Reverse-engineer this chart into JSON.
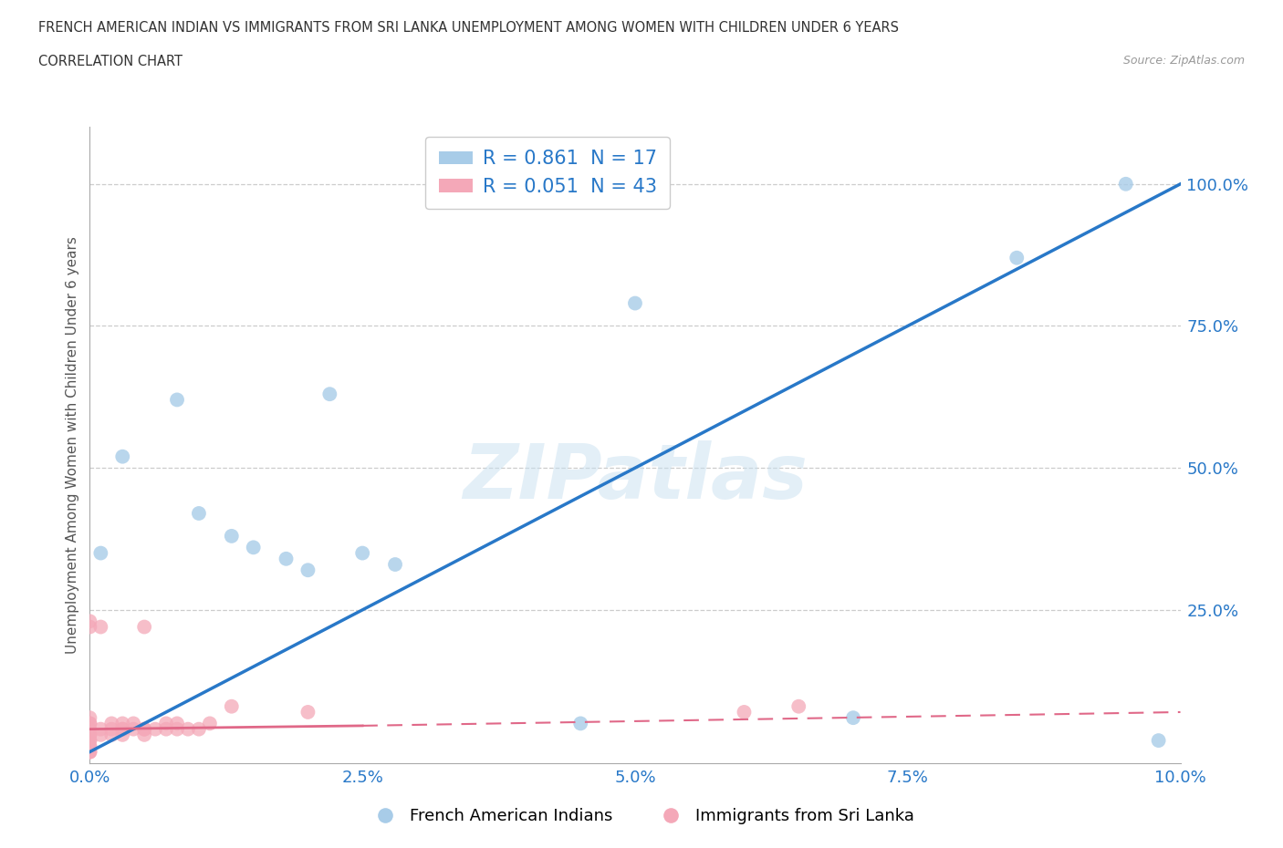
{
  "title_line1": "FRENCH AMERICAN INDIAN VS IMMIGRANTS FROM SRI LANKA UNEMPLOYMENT AMONG WOMEN WITH CHILDREN UNDER 6 YEARS",
  "title_line2": "CORRELATION CHART",
  "source": "Source: ZipAtlas.com",
  "ylabel": "Unemployment Among Women with Children Under 6 years",
  "xlim": [
    0.0,
    0.1
  ],
  "ylim": [
    -0.02,
    1.1
  ],
  "xtick_labels": [
    "0.0%",
    "2.5%",
    "5.0%",
    "7.5%",
    "10.0%"
  ],
  "xtick_vals": [
    0.0,
    0.025,
    0.05,
    0.075,
    0.1
  ],
  "ytick_labels": [
    "25.0%",
    "50.0%",
    "75.0%",
    "100.0%"
  ],
  "ytick_vals": [
    0.25,
    0.5,
    0.75,
    1.0
  ],
  "blue_R": 0.861,
  "blue_N": 17,
  "pink_R": 0.051,
  "pink_N": 43,
  "blue_color": "#a8cce8",
  "pink_color": "#f4a8b8",
  "blue_line_color": "#2878c8",
  "pink_line_color": "#e06888",
  "watermark_text": "ZIPatlas",
  "blue_scatter_x": [
    0.001,
    0.003,
    0.008,
    0.01,
    0.013,
    0.015,
    0.018,
    0.02,
    0.022,
    0.025,
    0.028,
    0.045,
    0.05,
    0.07,
    0.085,
    0.095,
    0.098
  ],
  "blue_scatter_y": [
    0.35,
    0.52,
    0.62,
    0.42,
    0.38,
    0.36,
    0.34,
    0.32,
    0.63,
    0.35,
    0.33,
    0.05,
    0.79,
    0.06,
    0.87,
    1.0,
    0.02
  ],
  "pink_scatter_x": [
    0.0,
    0.0,
    0.0,
    0.0,
    0.0,
    0.0,
    0.0,
    0.0,
    0.0,
    0.0,
    0.0,
    0.0,
    0.0,
    0.0,
    0.0,
    0.001,
    0.001,
    0.001,
    0.002,
    0.002,
    0.002,
    0.003,
    0.003,
    0.003,
    0.003,
    0.004,
    0.004,
    0.005,
    0.005,
    0.005,
    0.005,
    0.006,
    0.007,
    0.007,
    0.008,
    0.008,
    0.009,
    0.01,
    0.011,
    0.013,
    0.02,
    0.06,
    0.065
  ],
  "pink_scatter_y": [
    0.0,
    0.0,
    0.0,
    0.01,
    0.01,
    0.02,
    0.02,
    0.03,
    0.03,
    0.04,
    0.05,
    0.05,
    0.06,
    0.22,
    0.23,
    0.03,
    0.04,
    0.22,
    0.03,
    0.04,
    0.05,
    0.03,
    0.04,
    0.04,
    0.05,
    0.04,
    0.05,
    0.03,
    0.04,
    0.04,
    0.22,
    0.04,
    0.04,
    0.05,
    0.04,
    0.05,
    0.04,
    0.04,
    0.05,
    0.08,
    0.07,
    0.07,
    0.08
  ],
  "blue_line_x": [
    0.0,
    0.1
  ],
  "blue_line_y": [
    0.0,
    1.0
  ],
  "pink_line_x": [
    0.0,
    0.1
  ],
  "pink_line_y": [
    0.04,
    0.07
  ]
}
